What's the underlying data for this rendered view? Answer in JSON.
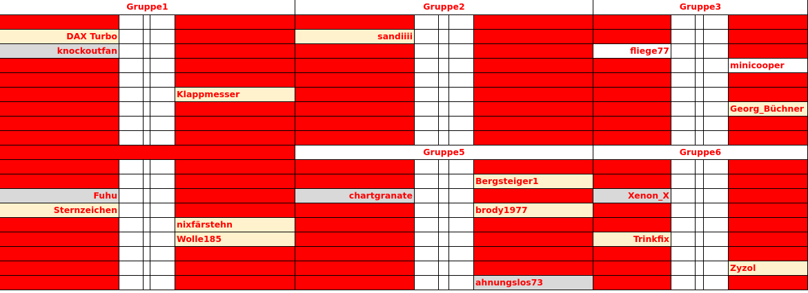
{
  "cell_fill": "#ff0000",
  "text_color": "#ff0000",
  "groups": [
    {
      "title": "Gruppe1",
      "header_fill": "#ffffff",
      "left": [
        null,
        {
          "name": "DAX Turbo",
          "fill": "#fff2cc"
        },
        {
          "name": "knockoutfan",
          "fill": "#d9d9d9"
        },
        null,
        null,
        null,
        null,
        null,
        null
      ],
      "right": [
        null,
        null,
        null,
        null,
        null,
        {
          "name": "Klappmesser",
          "fill": "#fff2cc"
        },
        null,
        null,
        null
      ]
    },
    {
      "title": "Gruppe2",
      "header_fill": "#ffffff",
      "left": [
        null,
        {
          "name": "sandiiii",
          "fill": "#fff2cc"
        },
        null,
        null,
        null,
        null,
        null,
        null,
        null
      ],
      "right": [
        null,
        null,
        null,
        null,
        null,
        null,
        null,
        null,
        null
      ]
    },
    {
      "title": "Gruppe3",
      "header_fill": "#ffffff",
      "left": [
        null,
        null,
        {
          "name": "fliege77",
          "fill": "#ffffff"
        },
        null,
        null,
        null,
        null,
        null,
        null
      ],
      "right": [
        null,
        null,
        null,
        {
          "name": "minicooper",
          "fill": "#ffffff"
        },
        null,
        null,
        {
          "name": "Georg_Büchner",
          "fill": "#fff2cc"
        },
        null,
        null
      ]
    },
    {
      "header_fill": "#ff0000",
      "left": [
        null,
        null,
        {
          "name": "Fuhu",
          "fill": "#d9d9d9"
        },
        {
          "name": "Sternzeichen",
          "fill": "#fff2cc"
        },
        null,
        null,
        null,
        null,
        null
      ],
      "right": [
        null,
        null,
        null,
        null,
        {
          "name": "nixfärstehn",
          "fill": "#fff2cc"
        },
        {
          "name": "Wolle185",
          "fill": "#fff2cc"
        },
        null,
        null,
        null
      ]
    },
    {
      "title": "Gruppe5",
      "header_fill": "#ffffff",
      "left": [
        null,
        null,
        {
          "name": "chartgranate",
          "fill": "#d9d9d9"
        },
        null,
        null,
        null,
        null,
        null,
        null
      ],
      "right": [
        null,
        {
          "name": "Bergsteiger1",
          "fill": "#fff2cc"
        },
        null,
        {
          "name": "brody1977",
          "fill": "#fff2cc"
        },
        null,
        null,
        null,
        null,
        {
          "name": "ahnungslos73",
          "fill": "#d9d9d9"
        }
      ]
    },
    {
      "title": "Gruppe6",
      "header_fill": "#ffffff",
      "left": [
        null,
        null,
        {
          "name": "Xenon_X",
          "fill": "#d9d9d9"
        },
        null,
        null,
        {
          "name": "Trinkfix",
          "fill": "#fff2cc"
        },
        null,
        null,
        null
      ],
      "right": [
        null,
        null,
        null,
        null,
        null,
        null,
        null,
        {
          "name": "Zyzol",
          "fill": "#fff2cc"
        },
        null
      ]
    }
  ]
}
